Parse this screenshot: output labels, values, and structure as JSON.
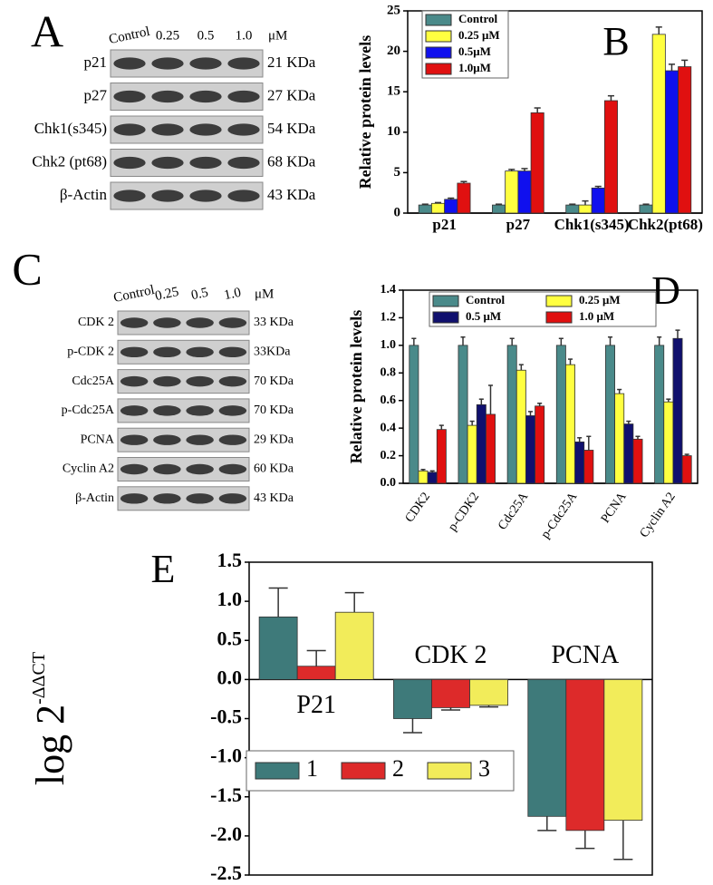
{
  "blot_a": {
    "letter": "A",
    "conditions": [
      "Control",
      "0.25",
      "0.5",
      "1.0"
    ],
    "unit": "μM",
    "rows": [
      {
        "protein": "p21",
        "size": "21 KDa"
      },
      {
        "protein": "p27",
        "size": "27 KDa"
      },
      {
        "protein": "Chk1(s345)",
        "size": "54 KDa"
      },
      {
        "protein": "Chk2 (pt68)",
        "size": "68 KDa"
      },
      {
        "protein": "β-Actin",
        "size": "43 KDa"
      }
    ]
  },
  "blot_c": {
    "letter": "C",
    "conditions": [
      "Control",
      "0.25",
      "0.5",
      "1.0"
    ],
    "unit": "μM",
    "rows": [
      {
        "protein": "CDK 2",
        "size": "33 KDa"
      },
      {
        "protein": "p-CDK 2",
        "size": "33KDa"
      },
      {
        "protein": "Cdc25A",
        "size": "70 KDa"
      },
      {
        "protein": "p-Cdc25A",
        "size": "70 KDa"
      },
      {
        "protein": "PCNA",
        "size": "29 KDa"
      },
      {
        "protein": "Cyclin A2",
        "size": "60 KDa"
      },
      {
        "protein": "β-Actin",
        "size": "43 KDa"
      }
    ]
  },
  "chart_data": [
    {
      "type": "bar",
      "panel_label": "B",
      "ylabel": "Relative protein levels",
      "categories": [
        "p21",
        "p27",
        "Chk1(s345)",
        "Chk2(pt68)"
      ],
      "series": [
        {
          "name": "Control",
          "color": "#4a8a8a",
          "values": [
            1,
            1,
            1,
            1
          ],
          "errors": [
            0.1,
            0.1,
            0.1,
            0.1
          ]
        },
        {
          "name": "0.25 μM",
          "color": "#ffff40",
          "values": [
            1.2,
            5.2,
            1.0,
            22.1
          ],
          "errors": [
            0.1,
            0.2,
            0.5,
            0.9
          ]
        },
        {
          "name": "0.5μM",
          "color": "#1010ee",
          "values": [
            1.7,
            5.2,
            3.1,
            17.6
          ],
          "errors": [
            0.15,
            0.3,
            0.2,
            0.8
          ]
        },
        {
          "name": "1.0μM",
          "color": "#e01010",
          "values": [
            3.7,
            12.4,
            13.9,
            18.1
          ],
          "errors": [
            0.2,
            0.6,
            0.6,
            0.8
          ]
        }
      ],
      "ylim": [
        0,
        25
      ],
      "yticks": [
        0,
        5,
        10,
        15,
        20,
        25
      ],
      "legend": "upper left"
    },
    {
      "type": "bar",
      "panel_label": "D",
      "ylabel": "Relative protein levels",
      "categories": [
        "CDK2",
        "p-CDK2",
        "Cdc25A",
        "p-Cdc25A",
        "PCNA",
        "Cyclin A2"
      ],
      "series": [
        {
          "name": "Control",
          "color": "#4a8a8a",
          "values": [
            1,
            1,
            1,
            1,
            1,
            1
          ],
          "errors": [
            0.05,
            0.06,
            0.05,
            0.05,
            0.06,
            0.06
          ]
        },
        {
          "name": "0.25 μM",
          "color": "#ffff40",
          "values": [
            0.09,
            0.42,
            0.82,
            0.86,
            0.65,
            0.59
          ],
          "errors": [
            0.01,
            0.03,
            0.04,
            0.04,
            0.03,
            0.02
          ]
        },
        {
          "name": "0.5 μM",
          "color": "#10106e",
          "values": [
            0.08,
            0.57,
            0.49,
            0.3,
            0.43,
            1.05
          ],
          "errors": [
            0.01,
            0.04,
            0.03,
            0.03,
            0.02,
            0.06
          ]
        },
        {
          "name": "1.0 μM",
          "color": "#e01010",
          "values": [
            0.39,
            0.5,
            0.56,
            0.24,
            0.32,
            0.2
          ],
          "errors": [
            0.03,
            0.21,
            0.02,
            0.1,
            0.02,
            0.01
          ]
        }
      ],
      "ylim": [
        0,
        1.4
      ],
      "yticks": [
        {
          "value": 0,
          "label": "0.0"
        },
        0.2,
        0.4,
        0.6,
        0.8,
        {
          "value": 1,
          "label": "1.0"
        },
        1.2,
        1.4
      ],
      "legend": "upper center"
    },
    {
      "type": "bar",
      "panel_label": "E",
      "ylabel": "log 2",
      "ylabel_sup": "-ΔΔCT",
      "categories": [
        "P21",
        "CDK 2",
        "PCNA"
      ],
      "series": [
        {
          "name": "1",
          "color": "#3e7a7a",
          "values": [
            0.8,
            -0.5,
            -1.75
          ],
          "errors": [
            0.37,
            0.18,
            0.18
          ]
        },
        {
          "name": "2",
          "color": "#dd2a2a",
          "values": [
            0.17,
            -0.36,
            -1.93
          ],
          "errors": [
            0.2,
            0.03,
            0.23
          ]
        },
        {
          "name": "3",
          "color": "#f2ec5a",
          "values": [
            0.86,
            -0.33,
            -1.8
          ],
          "errors": [
            0.25,
            0.02,
            0.5
          ]
        }
      ],
      "ylim": [
        -2.5,
        1.5
      ],
      "yticks": [
        1.5,
        {
          "value": 1,
          "label": "1.0"
        },
        0.5,
        {
          "value": 0,
          "label": "0.0"
        },
        -0.5,
        {
          "value": -1,
          "label": "-1.0"
        },
        -1.5,
        {
          "value": -2,
          "label": "-2.0"
        },
        -2.5
      ],
      "legend": "lower left"
    }
  ]
}
